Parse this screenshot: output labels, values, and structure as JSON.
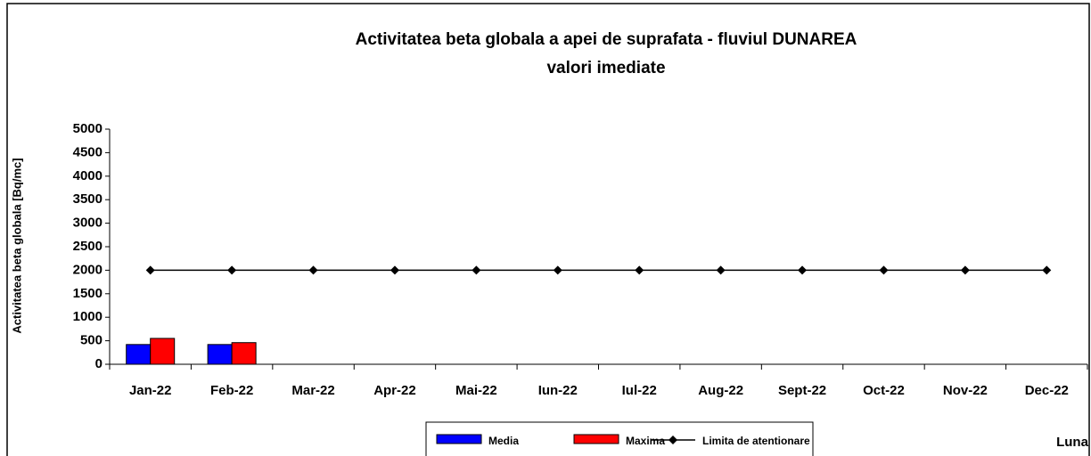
{
  "chart_data": {
    "type": "bar",
    "title": [
      "Activitatea beta globala a apei de suprafata - fluviul DUNAREA",
      "valori imediate"
    ],
    "y_label": "Activitatea beta globala [Bq/mc]",
    "x_label": "Luna",
    "categories": [
      "Jan-22",
      "Feb-22",
      "Mar-22",
      "Apr-22",
      "Mai-22",
      "Iun-22",
      "Iul-22",
      "Aug-22",
      "Sept-22",
      "Oct-22",
      "Nov-22",
      "Dec-22"
    ],
    "series": [
      {
        "name": "Media",
        "color": "#0000ff",
        "type": "bar",
        "values": [
          420,
          420,
          null,
          null,
          null,
          null,
          null,
          null,
          null,
          null,
          null,
          null
        ]
      },
      {
        "name": "Maxima",
        "color": "#ff0000",
        "type": "bar",
        "values": [
          550,
          460,
          null,
          null,
          null,
          null,
          null,
          null,
          null,
          null,
          null,
          null
        ]
      },
      {
        "name": "Limita de atentionare",
        "color": "#000000",
        "type": "line",
        "values": [
          2000,
          2000,
          2000,
          2000,
          2000,
          2000,
          2000,
          2000,
          2000,
          2000,
          2000,
          2000
        ]
      }
    ],
    "ylim": [
      0,
      5000
    ],
    "yticks": [
      0,
      500,
      1000,
      1500,
      2000,
      2500,
      3000,
      3500,
      4000,
      4500,
      5000
    ],
    "legend": "bottom"
  }
}
